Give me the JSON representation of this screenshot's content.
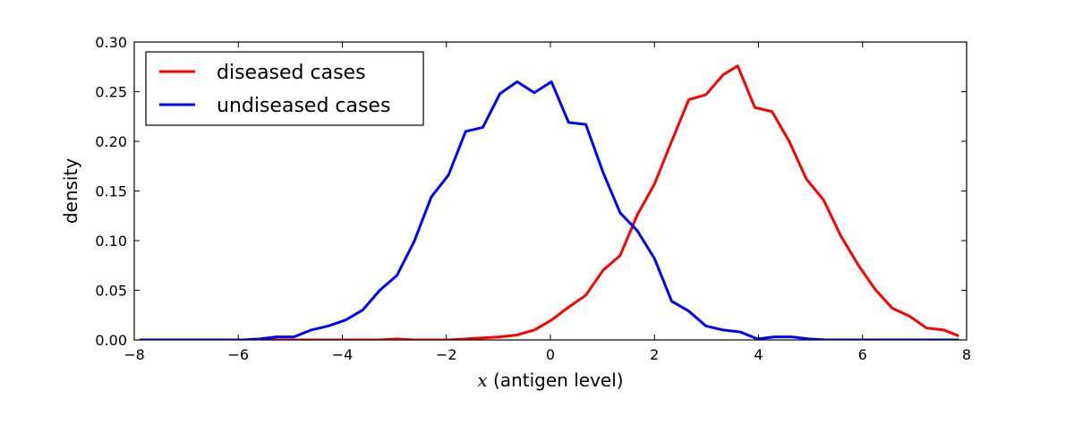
{
  "chart_data": {
    "type": "line",
    "title": "",
    "xlabel_var": "x",
    "xlabel_text": " (antigen level)",
    "ylabel": "density",
    "xlim": [
      -8,
      8
    ],
    "ylim": [
      0,
      0.3
    ],
    "xticks": [
      -8,
      -6,
      -4,
      -2,
      0,
      2,
      4,
      6,
      8
    ],
    "xtick_labels": [
      "−8",
      "−6",
      "−4",
      "−2",
      "0",
      "2",
      "4",
      "6",
      "8"
    ],
    "yticks": [
      0,
      0.05,
      0.1,
      0.15,
      0.2,
      0.25,
      0.3
    ],
    "ytick_labels": [
      "0.00",
      "0.05",
      "0.10",
      "0.15",
      "0.20",
      "0.25",
      "0.30"
    ],
    "grid": false,
    "legend_position": "top-left",
    "series": [
      {
        "name": "diseased cases",
        "color": "#ff0000",
        "x": [
          -7.9,
          -7.57,
          -7.24,
          -6.91,
          -6.58,
          -6.25,
          -5.92,
          -5.59,
          -5.26,
          -4.93,
          -4.6,
          -4.27,
          -3.94,
          -3.61,
          -3.28,
          -2.95,
          -2.62,
          -2.29,
          -1.96,
          -1.63,
          -1.3,
          -0.97,
          -0.64,
          -0.31,
          0.02,
          0.35,
          0.68,
          1.01,
          1.34,
          1.67,
          2.0,
          2.33,
          2.66,
          2.99,
          3.32,
          3.6,
          3.93,
          4.26,
          4.59,
          4.92,
          5.25,
          5.58,
          5.91,
          6.24,
          6.57,
          6.9,
          7.23,
          7.56,
          7.85
        ],
        "y": [
          0,
          0,
          0,
          0,
          0,
          0,
          0,
          0,
          0,
          0,
          0,
          0,
          0,
          0,
          0,
          0.001,
          0,
          0,
          0,
          0.001,
          0.002,
          0.003,
          0.005,
          0.01,
          0.02,
          0.033,
          0.045,
          0.07,
          0.085,
          0.126,
          0.157,
          0.2,
          0.242,
          0.247,
          0.267,
          0.276,
          0.234,
          0.23,
          0.2,
          0.162,
          0.141,
          0.105,
          0.076,
          0.051,
          0.032,
          0.024,
          0.012,
          0.01,
          0.004
        ]
      },
      {
        "name": "undiseased cases",
        "color": "#0000ff",
        "x": [
          -7.9,
          -7.57,
          -7.24,
          -6.91,
          -6.58,
          -6.25,
          -5.92,
          -5.59,
          -5.26,
          -4.93,
          -4.6,
          -4.27,
          -3.94,
          -3.61,
          -3.28,
          -2.95,
          -2.62,
          -2.29,
          -1.96,
          -1.63,
          -1.3,
          -0.97,
          -0.64,
          -0.31,
          0.02,
          0.35,
          0.68,
          1.01,
          1.34,
          1.67,
          2.0,
          2.33,
          2.66,
          2.99,
          3.32,
          3.65,
          3.98,
          4.31,
          4.64,
          4.97,
          5.3,
          5.63,
          5.96,
          6.29,
          6.62,
          6.95,
          7.28,
          7.61,
          7.85
        ],
        "y": [
          0,
          0,
          0,
          0,
          0,
          0,
          0,
          0.001,
          0.003,
          0.003,
          0.01,
          0.014,
          0.02,
          0.03,
          0.05,
          0.065,
          0.099,
          0.144,
          0.166,
          0.21,
          0.214,
          0.248,
          0.26,
          0.249,
          0.26,
          0.219,
          0.217,
          0.169,
          0.128,
          0.11,
          0.082,
          0.039,
          0.029,
          0.014,
          0.01,
          0.008,
          0.001,
          0.003,
          0.003,
          0.001,
          0,
          0,
          0,
          0,
          0,
          0,
          0,
          0,
          0
        ]
      }
    ]
  }
}
